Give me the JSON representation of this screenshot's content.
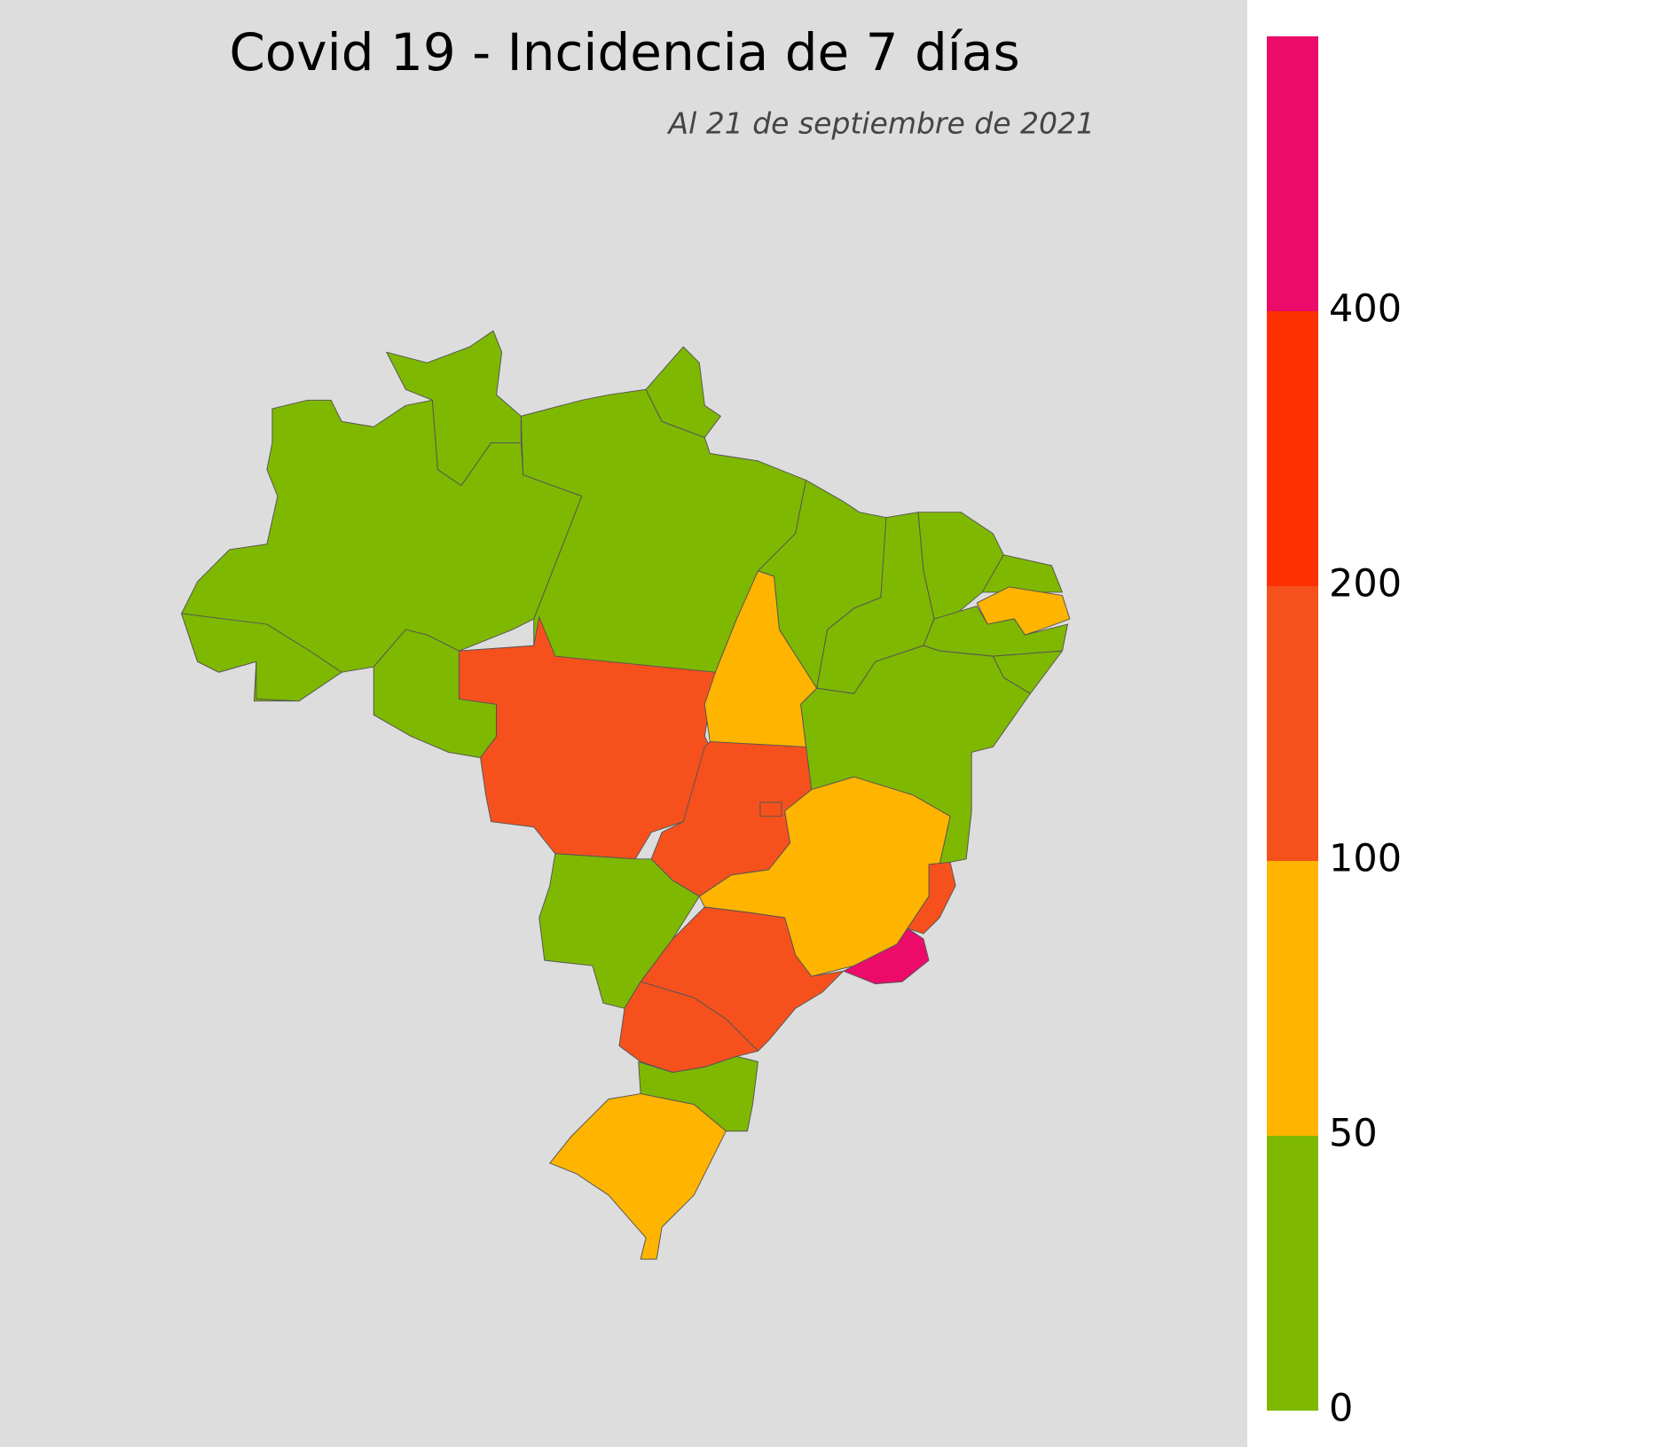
{
  "chart_data": {
    "type": "choropleth",
    "title": "Covid 19 - Incidencia de 7 días",
    "subtitle": "Al 21 de septiembre de 2021",
    "colorbar": {
      "ticks": [
        0,
        50,
        100,
        200,
        400
      ],
      "colors": [
        "#7fb800",
        "#ffb400",
        "#f6511d",
        "#fc3000",
        "#ec0b6a"
      ]
    }
  }
}
